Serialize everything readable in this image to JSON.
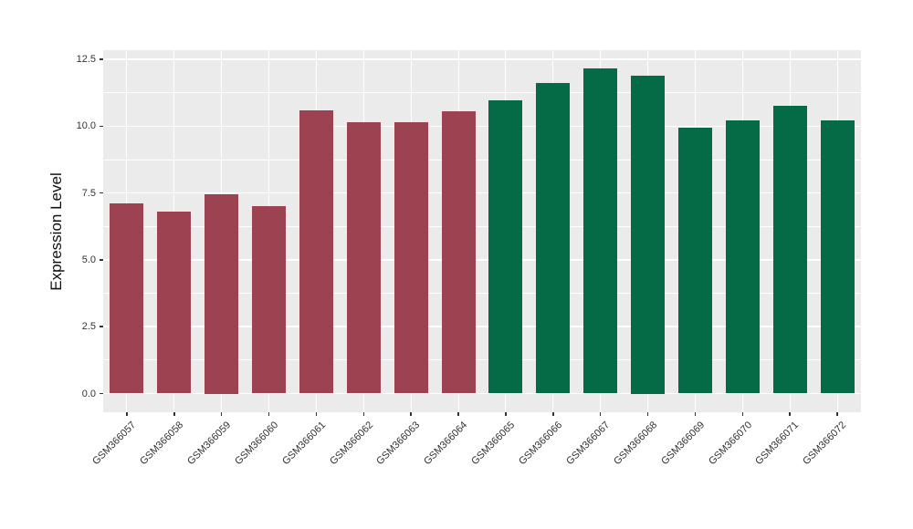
{
  "chart_data": {
    "type": "bar",
    "title": "",
    "xlabel": "",
    "ylabel": "Expression Level",
    "categories": [
      "GSM366057",
      "GSM366058",
      "GSM366059",
      "GSM366060",
      "GSM366061",
      "GSM366062",
      "GSM366063",
      "GSM366064",
      "GSM366065",
      "GSM366066",
      "GSM366067",
      "GSM366068",
      "GSM366069",
      "GSM366070",
      "GSM366071",
      "GSM366072"
    ],
    "values": [
      7.1,
      6.8,
      7.45,
      7.0,
      10.6,
      10.15,
      10.15,
      10.55,
      10.95,
      11.6,
      12.15,
      11.9,
      9.95,
      10.2,
      10.75,
      10.2
    ],
    "bar_colors": [
      "#9C4250",
      "#9C4250",
      "#9C4250",
      "#9C4250",
      "#9C4250",
      "#9C4250",
      "#9C4250",
      "#9C4250",
      "#056B47",
      "#056B47",
      "#056B47",
      "#056B47",
      "#056B47",
      "#056B47",
      "#056B47",
      "#056B47"
    ],
    "group_colors": {
      "first_eight_samples": "#9C4250",
      "last_eight_samples": "#056B47"
    },
    "ytick_values": [
      0.0,
      2.5,
      5.0,
      7.5,
      10.0,
      12.5
    ],
    "ytick_labels": [
      "0.0",
      "2.5",
      "5.0",
      "7.5",
      "10.0",
      "12.5"
    ],
    "yminor_values": [
      1.25,
      3.75,
      6.25,
      8.75,
      11.25
    ],
    "ylim": [
      -0.7,
      12.85
    ],
    "grid": "white major and minor horizontal gridlines, white vertical gridline at each category, on gray panel",
    "legend": "none",
    "panel_background": "#EBEBEB",
    "gridline_color": "#FFFFFF",
    "axis_text_color": "#333333"
  }
}
